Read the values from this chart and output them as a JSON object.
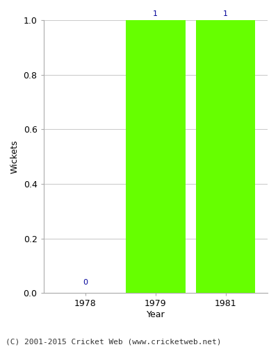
{
  "years": [
    1978,
    1979,
    1981
  ],
  "values": [
    0,
    1,
    1
  ],
  "bar_color": "#66ff00",
  "bar_edgecolor": "#66ff00",
  "label_color": "#000099",
  "label_fontsize": 8,
  "ylabel": "Wickets",
  "xlabel": "Year",
  "ylim": [
    0.0,
    1.0
  ],
  "yticks": [
    0.0,
    0.2,
    0.4,
    0.6,
    0.8,
    1.0
  ],
  "background_color": "#ffffff",
  "plot_bg_color": "#ffffff",
  "grid_color": "#cccccc",
  "footer": "(C) 2001-2015 Cricket Web (www.cricketweb.net)",
  "footer_fontsize": 8,
  "bar_width": 0.85
}
